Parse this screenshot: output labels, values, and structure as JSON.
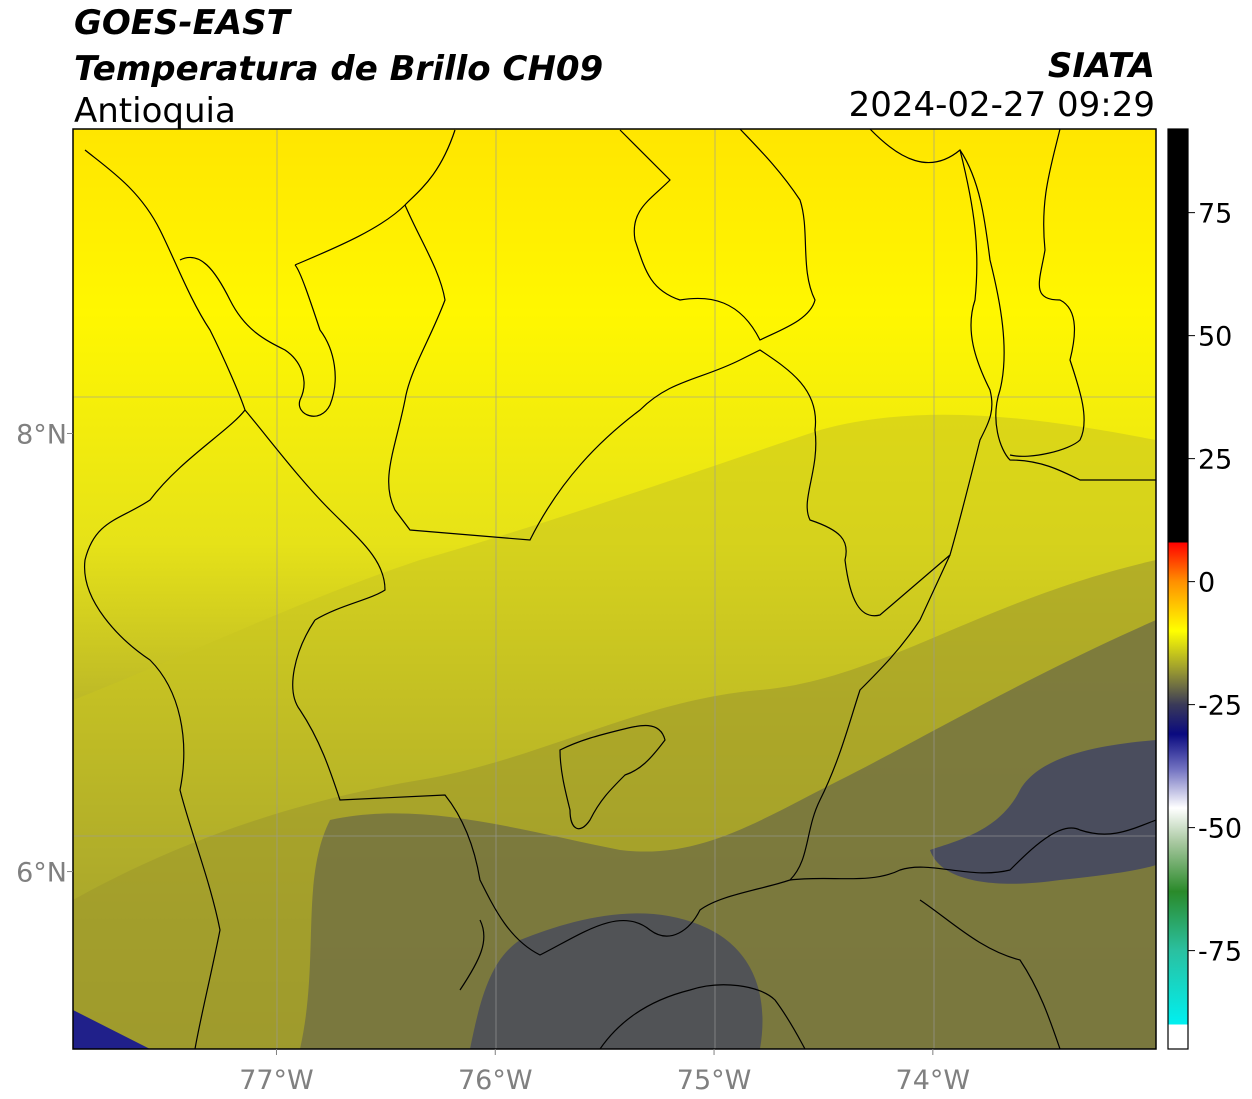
{
  "header": {
    "line1": "GOES-EAST",
    "line2": "Temperatura de Brillo CH09",
    "line3": "Antioquia",
    "org": "SIATA",
    "datetime": "2024-02-27 09:29"
  },
  "map": {
    "lon_range": [
      -77.93,
      -72.98
    ],
    "lat_range": [
      5.19,
      9.39
    ],
    "lon_ticks": [
      {
        "value": -77,
        "label": "77°W"
      },
      {
        "value": -76,
        "label": "76°W"
      },
      {
        "value": -75,
        "label": "75°W"
      },
      {
        "value": -74,
        "label": "74°W"
      }
    ],
    "lat_ticks": [
      {
        "value": 8,
        "label": "8°N"
      },
      {
        "value": 6,
        "label": "6°N"
      }
    ],
    "grid": true,
    "colors": {
      "bright_yellow": "#ffef00",
      "yellow": "#f4f000",
      "olive": "#a8a624",
      "dark_olive": "#6e6c40",
      "slate": "#3f4258",
      "border": "#000000",
      "gridline": "#9a9a9a"
    }
  },
  "colorbar": {
    "range": [
      -95,
      92
    ],
    "ticks": [
      {
        "value": 75,
        "label": "75"
      },
      {
        "value": 50,
        "label": "50"
      },
      {
        "value": 25,
        "label": "25"
      },
      {
        "value": 0,
        "label": "0"
      },
      {
        "value": -25,
        "label": "-25"
      },
      {
        "value": -50,
        "label": "-50"
      },
      {
        "value": -75,
        "label": "-75"
      }
    ],
    "stops": [
      {
        "value": 92,
        "color": "#000000"
      },
      {
        "value": 8,
        "color": "#000000"
      },
      {
        "value": 8,
        "color": "#ff0000"
      },
      {
        "value": 0,
        "color": "#ff9000"
      },
      {
        "value": -10,
        "color": "#ffff00"
      },
      {
        "value": -18,
        "color": "#9a9a30"
      },
      {
        "value": -25,
        "color": "#3a3a58"
      },
      {
        "value": -31,
        "color": "#0a0a80"
      },
      {
        "value": -38,
        "color": "#7070c0"
      },
      {
        "value": -46,
        "color": "#ffffff"
      },
      {
        "value": -53,
        "color": "#a8c8a0"
      },
      {
        "value": -63,
        "color": "#2a8a2a"
      },
      {
        "value": -75,
        "color": "#2ac0a0"
      },
      {
        "value": -90,
        "color": "#00f0f0"
      },
      {
        "value": -90,
        "color": "#ffffff"
      },
      {
        "value": -95,
        "color": "#ffffff"
      }
    ]
  }
}
